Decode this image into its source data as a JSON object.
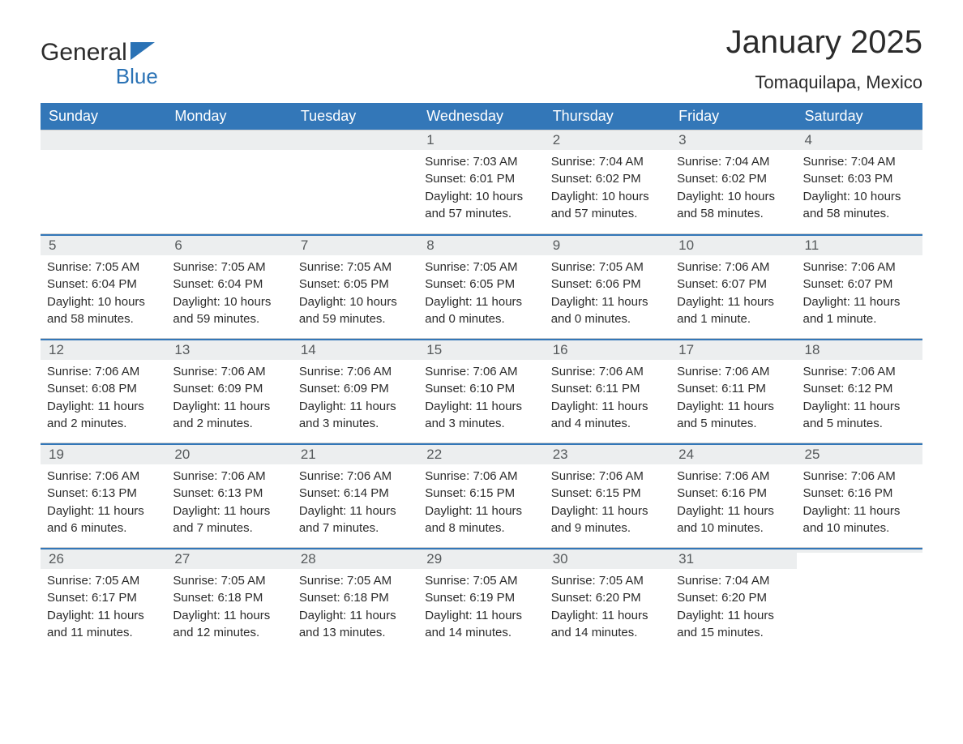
{
  "brand": {
    "part1": "General",
    "part2": "Blue"
  },
  "title": "January 2025",
  "subtitle": "Tomaquilapa, Mexico",
  "header_bg": "#3377b8",
  "header_fg": "#ffffff",
  "daybar_bg": "#eceeef",
  "daybar_fg": "#565a5c",
  "accent": "#3377b8",
  "text_color": "#2b2b2b",
  "background": "#ffffff",
  "dayNames": [
    "Sunday",
    "Monday",
    "Tuesday",
    "Wednesday",
    "Thursday",
    "Friday",
    "Saturday"
  ],
  "weeks": [
    [
      {
        "blank": true
      },
      {
        "blank": true
      },
      {
        "blank": true
      },
      {
        "day": "1",
        "sunrise": "Sunrise: 7:03 AM",
        "sunset": "Sunset: 6:01 PM",
        "daylight1": "Daylight: 10 hours",
        "daylight2": "and 57 minutes."
      },
      {
        "day": "2",
        "sunrise": "Sunrise: 7:04 AM",
        "sunset": "Sunset: 6:02 PM",
        "daylight1": "Daylight: 10 hours",
        "daylight2": "and 57 minutes."
      },
      {
        "day": "3",
        "sunrise": "Sunrise: 7:04 AM",
        "sunset": "Sunset: 6:02 PM",
        "daylight1": "Daylight: 10 hours",
        "daylight2": "and 58 minutes."
      },
      {
        "day": "4",
        "sunrise": "Sunrise: 7:04 AM",
        "sunset": "Sunset: 6:03 PM",
        "daylight1": "Daylight: 10 hours",
        "daylight2": "and 58 minutes."
      }
    ],
    [
      {
        "day": "5",
        "sunrise": "Sunrise: 7:05 AM",
        "sunset": "Sunset: 6:04 PM",
        "daylight1": "Daylight: 10 hours",
        "daylight2": "and 58 minutes."
      },
      {
        "day": "6",
        "sunrise": "Sunrise: 7:05 AM",
        "sunset": "Sunset: 6:04 PM",
        "daylight1": "Daylight: 10 hours",
        "daylight2": "and 59 minutes."
      },
      {
        "day": "7",
        "sunrise": "Sunrise: 7:05 AM",
        "sunset": "Sunset: 6:05 PM",
        "daylight1": "Daylight: 10 hours",
        "daylight2": "and 59 minutes."
      },
      {
        "day": "8",
        "sunrise": "Sunrise: 7:05 AM",
        "sunset": "Sunset: 6:05 PM",
        "daylight1": "Daylight: 11 hours",
        "daylight2": "and 0 minutes."
      },
      {
        "day": "9",
        "sunrise": "Sunrise: 7:05 AM",
        "sunset": "Sunset: 6:06 PM",
        "daylight1": "Daylight: 11 hours",
        "daylight2": "and 0 minutes."
      },
      {
        "day": "10",
        "sunrise": "Sunrise: 7:06 AM",
        "sunset": "Sunset: 6:07 PM",
        "daylight1": "Daylight: 11 hours",
        "daylight2": "and 1 minute."
      },
      {
        "day": "11",
        "sunrise": "Sunrise: 7:06 AM",
        "sunset": "Sunset: 6:07 PM",
        "daylight1": "Daylight: 11 hours",
        "daylight2": "and 1 minute."
      }
    ],
    [
      {
        "day": "12",
        "sunrise": "Sunrise: 7:06 AM",
        "sunset": "Sunset: 6:08 PM",
        "daylight1": "Daylight: 11 hours",
        "daylight2": "and 2 minutes."
      },
      {
        "day": "13",
        "sunrise": "Sunrise: 7:06 AM",
        "sunset": "Sunset: 6:09 PM",
        "daylight1": "Daylight: 11 hours",
        "daylight2": "and 2 minutes."
      },
      {
        "day": "14",
        "sunrise": "Sunrise: 7:06 AM",
        "sunset": "Sunset: 6:09 PM",
        "daylight1": "Daylight: 11 hours",
        "daylight2": "and 3 minutes."
      },
      {
        "day": "15",
        "sunrise": "Sunrise: 7:06 AM",
        "sunset": "Sunset: 6:10 PM",
        "daylight1": "Daylight: 11 hours",
        "daylight2": "and 3 minutes."
      },
      {
        "day": "16",
        "sunrise": "Sunrise: 7:06 AM",
        "sunset": "Sunset: 6:11 PM",
        "daylight1": "Daylight: 11 hours",
        "daylight2": "and 4 minutes."
      },
      {
        "day": "17",
        "sunrise": "Sunrise: 7:06 AM",
        "sunset": "Sunset: 6:11 PM",
        "daylight1": "Daylight: 11 hours",
        "daylight2": "and 5 minutes."
      },
      {
        "day": "18",
        "sunrise": "Sunrise: 7:06 AM",
        "sunset": "Sunset: 6:12 PM",
        "daylight1": "Daylight: 11 hours",
        "daylight2": "and 5 minutes."
      }
    ],
    [
      {
        "day": "19",
        "sunrise": "Sunrise: 7:06 AM",
        "sunset": "Sunset: 6:13 PM",
        "daylight1": "Daylight: 11 hours",
        "daylight2": "and 6 minutes."
      },
      {
        "day": "20",
        "sunrise": "Sunrise: 7:06 AM",
        "sunset": "Sunset: 6:13 PM",
        "daylight1": "Daylight: 11 hours",
        "daylight2": "and 7 minutes."
      },
      {
        "day": "21",
        "sunrise": "Sunrise: 7:06 AM",
        "sunset": "Sunset: 6:14 PM",
        "daylight1": "Daylight: 11 hours",
        "daylight2": "and 7 minutes."
      },
      {
        "day": "22",
        "sunrise": "Sunrise: 7:06 AM",
        "sunset": "Sunset: 6:15 PM",
        "daylight1": "Daylight: 11 hours",
        "daylight2": "and 8 minutes."
      },
      {
        "day": "23",
        "sunrise": "Sunrise: 7:06 AM",
        "sunset": "Sunset: 6:15 PM",
        "daylight1": "Daylight: 11 hours",
        "daylight2": "and 9 minutes."
      },
      {
        "day": "24",
        "sunrise": "Sunrise: 7:06 AM",
        "sunset": "Sunset: 6:16 PM",
        "daylight1": "Daylight: 11 hours",
        "daylight2": "and 10 minutes."
      },
      {
        "day": "25",
        "sunrise": "Sunrise: 7:06 AM",
        "sunset": "Sunset: 6:16 PM",
        "daylight1": "Daylight: 11 hours",
        "daylight2": "and 10 minutes."
      }
    ],
    [
      {
        "day": "26",
        "sunrise": "Sunrise: 7:05 AM",
        "sunset": "Sunset: 6:17 PM",
        "daylight1": "Daylight: 11 hours",
        "daylight2": "and 11 minutes."
      },
      {
        "day": "27",
        "sunrise": "Sunrise: 7:05 AM",
        "sunset": "Sunset: 6:18 PM",
        "daylight1": "Daylight: 11 hours",
        "daylight2": "and 12 minutes."
      },
      {
        "day": "28",
        "sunrise": "Sunrise: 7:05 AM",
        "sunset": "Sunset: 6:18 PM",
        "daylight1": "Daylight: 11 hours",
        "daylight2": "and 13 minutes."
      },
      {
        "day": "29",
        "sunrise": "Sunrise: 7:05 AM",
        "sunset": "Sunset: 6:19 PM",
        "daylight1": "Daylight: 11 hours",
        "daylight2": "and 14 minutes."
      },
      {
        "day": "30",
        "sunrise": "Sunrise: 7:05 AM",
        "sunset": "Sunset: 6:20 PM",
        "daylight1": "Daylight: 11 hours",
        "daylight2": "and 14 minutes."
      },
      {
        "day": "31",
        "sunrise": "Sunrise: 7:04 AM",
        "sunset": "Sunset: 6:20 PM",
        "daylight1": "Daylight: 11 hours",
        "daylight2": "and 15 minutes."
      },
      {
        "blank": true
      }
    ]
  ]
}
